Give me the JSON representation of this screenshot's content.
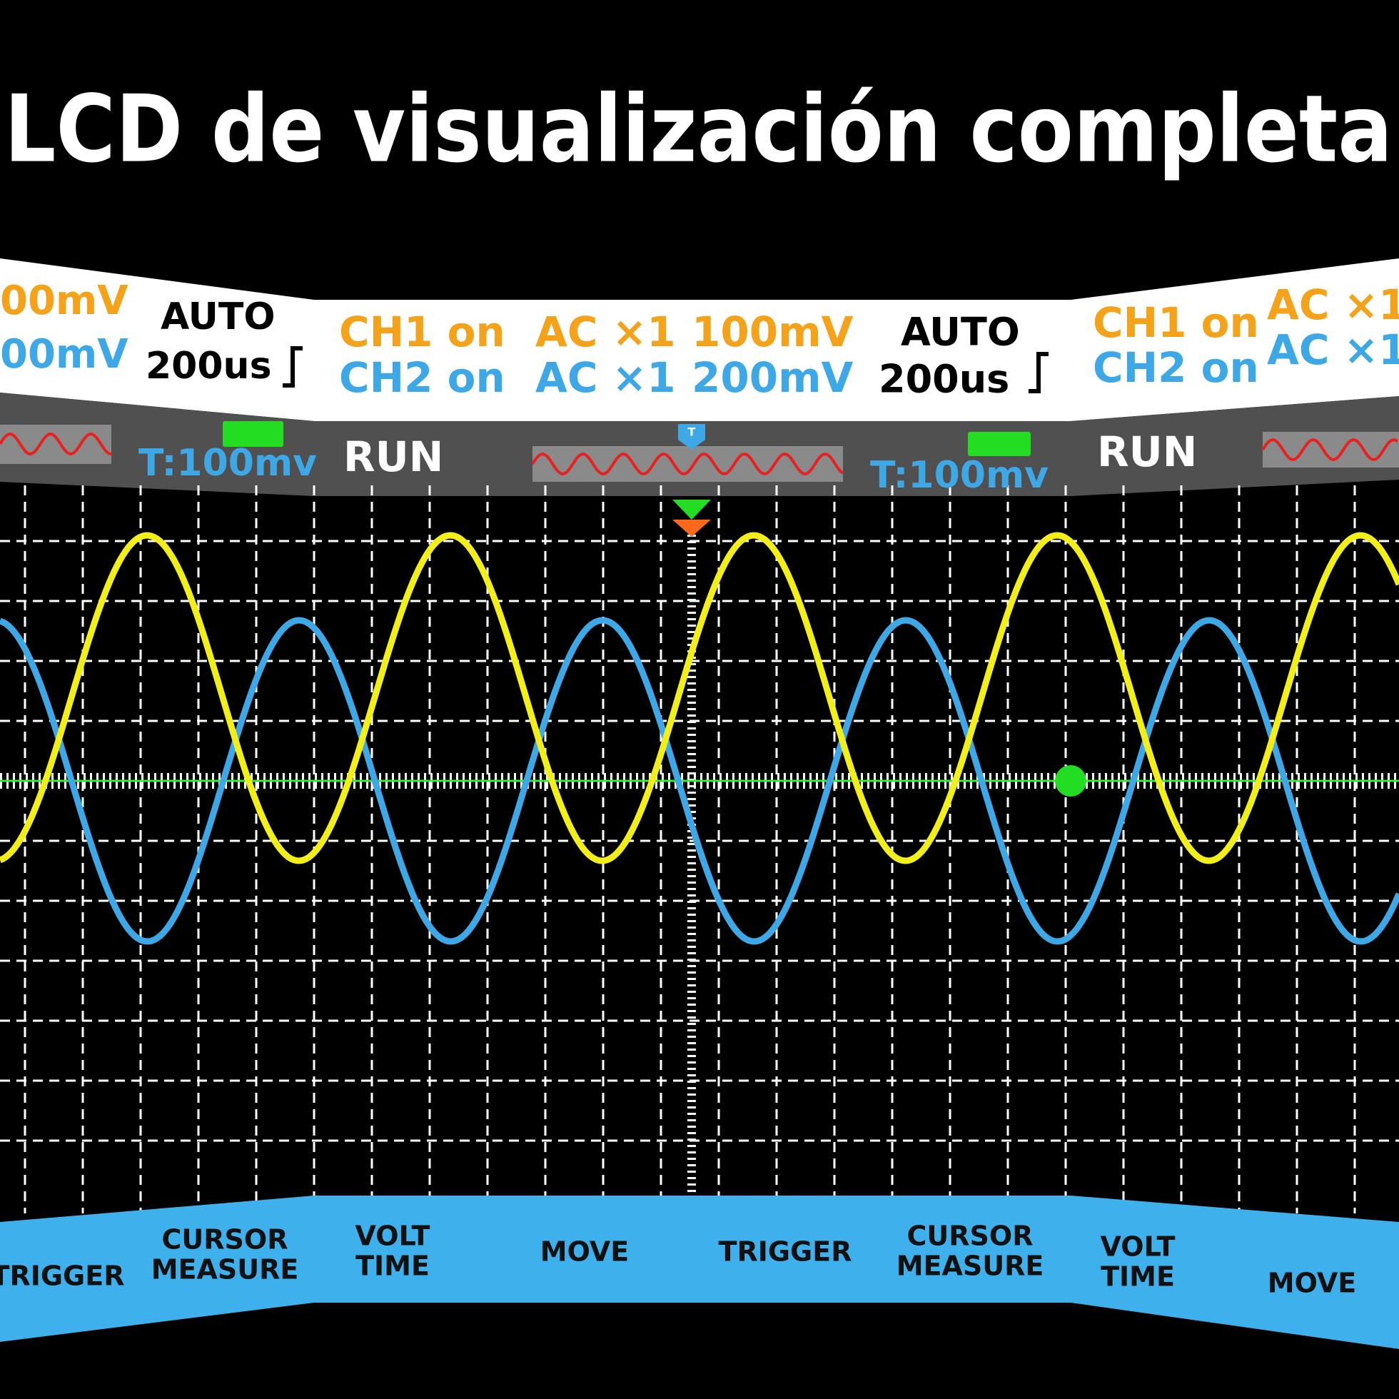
{
  "title": "LCD de visualización completa",
  "header": {
    "left": {
      "ch1_scale": "00mV",
      "ch2_scale": "00mV",
      "mode": "AUTO",
      "timebase": "200us"
    },
    "center": {
      "ch1": "CH1 on",
      "ch1_coupling": "AC ×1",
      "ch1_scale": "100mV",
      "ch2": "CH2 on",
      "ch2_coupling": "AC ×1",
      "ch2_scale": "200mV",
      "mode": "AUTO",
      "timebase": "200us"
    },
    "right": {
      "ch1": "CH1 on",
      "ch1_coupling": "AC ×1",
      "ch2": "CH2 on",
      "ch2_coupling": "AC ×1"
    }
  },
  "status": {
    "left_trigger": "T:100mv",
    "left_state": "RUN",
    "right_trigger": "T:100mv",
    "right_state": "RUN",
    "trigger_marker": "T"
  },
  "buttons": [
    {
      "lines": [
        "TRIGGER"
      ]
    },
    {
      "lines": [
        "CURSOR",
        "MEASURE"
      ]
    },
    {
      "lines": [
        "VOLT",
        "TIME"
      ]
    },
    {
      "lines": [
        "MOVE"
      ]
    },
    {
      "lines": [
        "TRIGGER"
      ]
    },
    {
      "lines": [
        "CURSOR",
        "MEASURE"
      ]
    },
    {
      "lines": [
        "VOLT",
        "TIME"
      ]
    },
    {
      "lines": [
        "MOVE"
      ]
    }
  ]
}
